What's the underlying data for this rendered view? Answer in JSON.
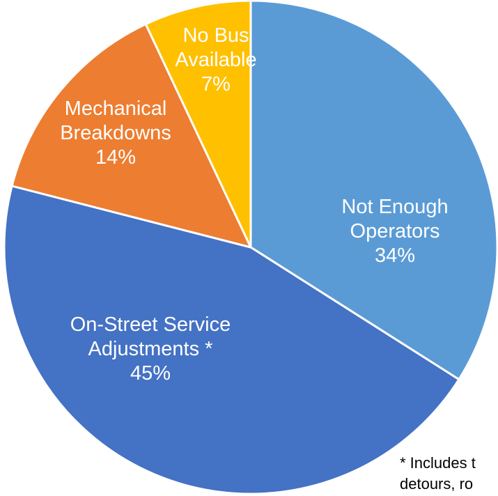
{
  "chart_data": {
    "type": "pie",
    "start_angle_deg": 0,
    "direction": "clockwise",
    "slices": [
      {
        "label_lines": [
          "Not Enough",
          "Operators"
        ],
        "value": 34,
        "value_label": "34%",
        "color": "#5b9bd5"
      },
      {
        "label_lines": [
          "On-Street Service",
          "Adjustments *"
        ],
        "value": 45,
        "value_label": "45%",
        "color": "#4472c4"
      },
      {
        "label_lines": [
          "Mechanical",
          "Breakdowns"
        ],
        "value": 14,
        "value_label": "14%",
        "color": "#ed7d31"
      },
      {
        "label_lines": [
          "No Bus",
          "Available"
        ],
        "value": 7,
        "value_label": "7%",
        "color": "#ffc000"
      }
    ]
  },
  "footnote": {
    "lines": [
      "* Includes t",
      "detours, ro"
    ]
  }
}
